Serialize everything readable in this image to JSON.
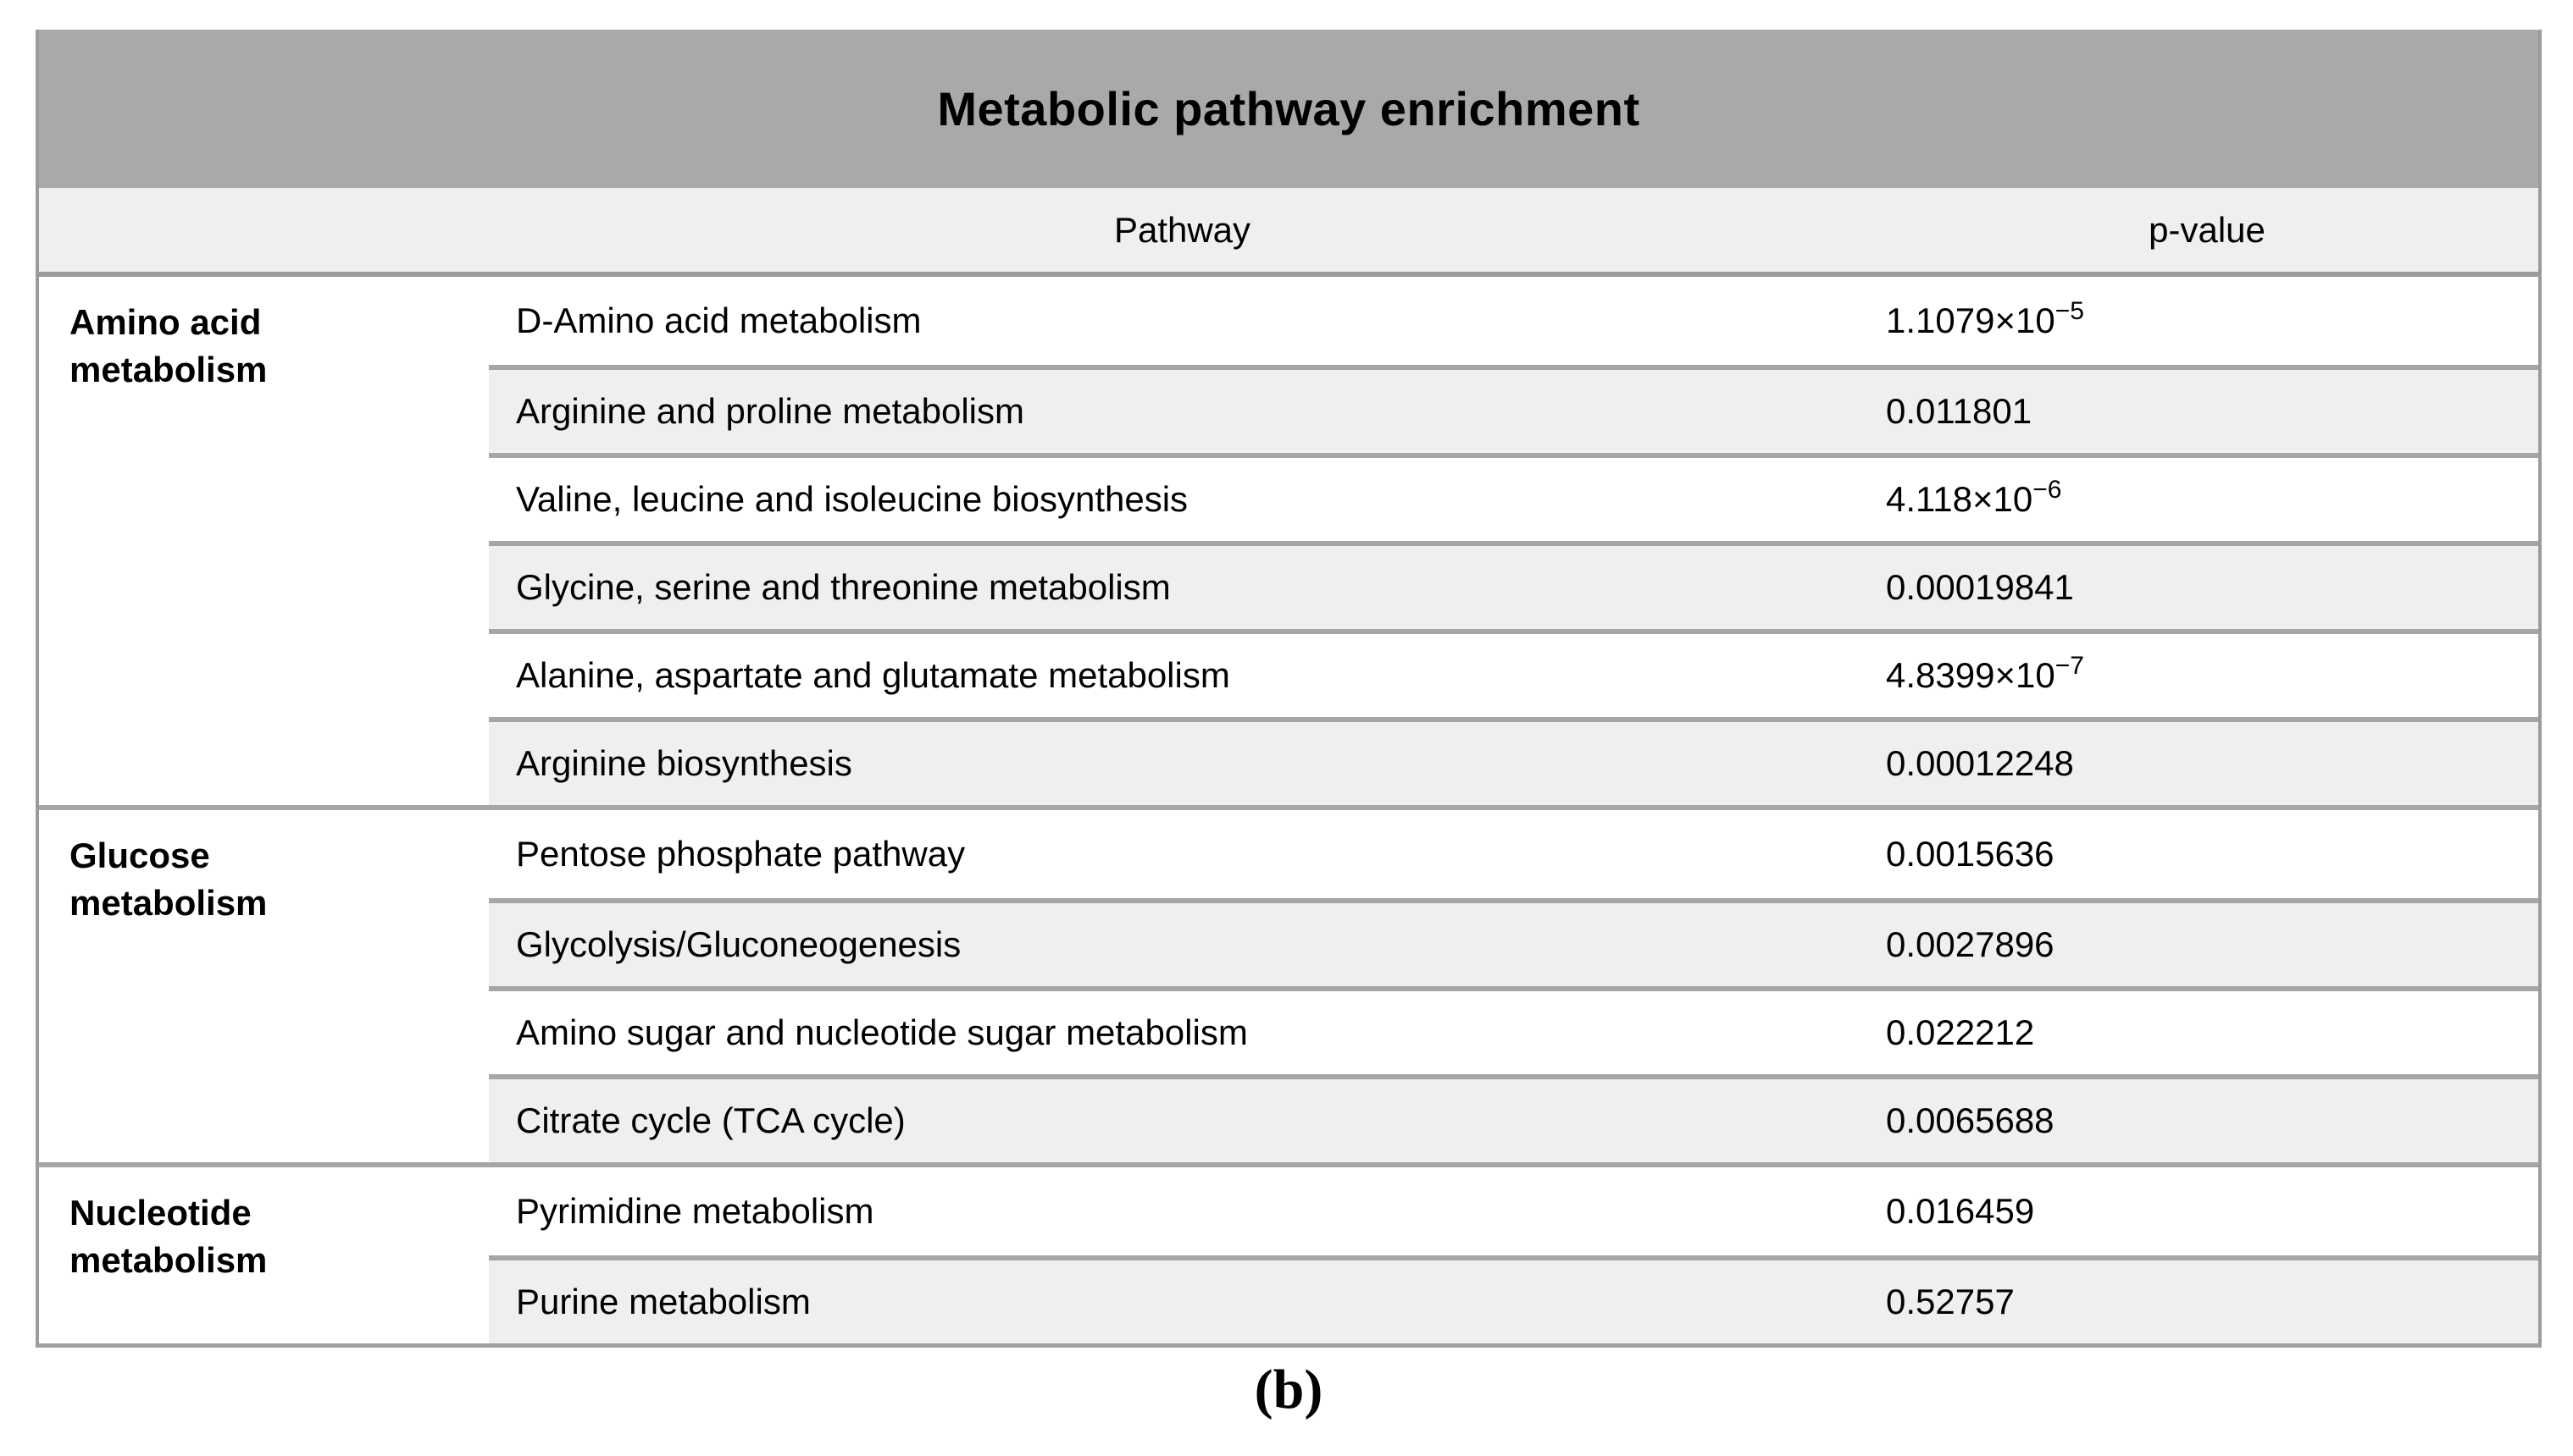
{
  "figure": {
    "title": "Metabolic pathway enrichment",
    "columns": {
      "pathway": "Pathway",
      "pvalue": "p-value"
    },
    "sections": [
      {
        "category": "Amino acid metabolism",
        "rows": [
          {
            "pathway": "D-Amino acid metabolism",
            "pvalue": "1.1079×10",
            "exp": "−5"
          },
          {
            "pathway": "Arginine and proline metabolism",
            "pvalue": "0.011801",
            "exp": null
          },
          {
            "pathway": "Valine, leucine and isoleucine biosynthesis",
            "pvalue": "4.118×10",
            "exp": "−6"
          },
          {
            "pathway": "Glycine, serine and threonine metabolism",
            "pvalue": "0.00019841",
            "exp": null
          },
          {
            "pathway": "Alanine, aspartate and glutamate metabolism",
            "pvalue": "4.8399×10",
            "exp": "−7"
          },
          {
            "pathway": "Arginine biosynthesis",
            "pvalue": "0.00012248",
            "exp": null
          }
        ]
      },
      {
        "category": "Glucose metabolism",
        "rows": [
          {
            "pathway": "Pentose phosphate pathway",
            "pvalue": "0.0015636",
            "exp": null
          },
          {
            "pathway": "Glycolysis/Gluconeogenesis",
            "pvalue": "0.0027896",
            "exp": null
          },
          {
            "pathway": "Amino sugar and nucleotide sugar metabolism",
            "pvalue": "0.022212",
            "exp": null
          },
          {
            "pathway": "Citrate cycle (TCA cycle)",
            "pvalue": "0.0065688",
            "exp": null
          }
        ]
      },
      {
        "category": "Nucleotide metabolism",
        "rows": [
          {
            "pathway": "Pyrimidine metabolism",
            "pvalue": "0.016459",
            "exp": null
          },
          {
            "pathway": "Purine metabolism",
            "pvalue": "0.52757",
            "exp": null
          }
        ]
      }
    ],
    "caption": "(b)"
  },
  "colors": {
    "title_bar": "#a9a9a9",
    "header_bg": "#efefef",
    "stripe_bg": "#efefef",
    "divider": "#a6a6a6",
    "text": "#000000"
  }
}
